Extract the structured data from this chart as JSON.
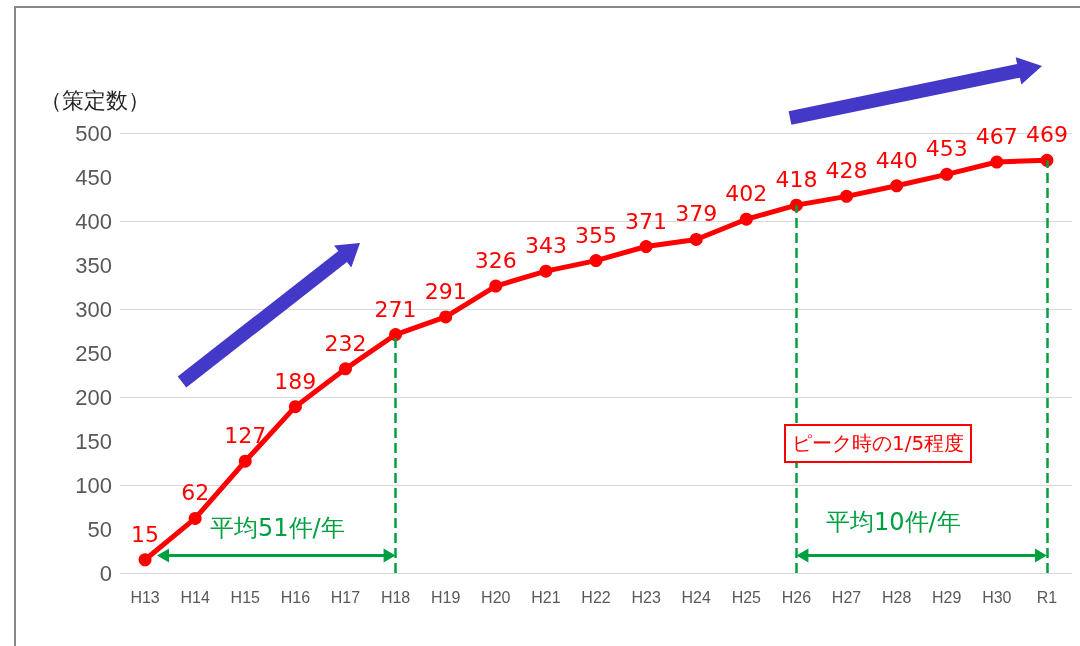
{
  "chart_data": {
    "type": "line",
    "ylabel": "（策定数）",
    "categories": [
      "H13",
      "H14",
      "H15",
      "H16",
      "H17",
      "H18",
      "H19",
      "H20",
      "H21",
      "H22",
      "H23",
      "H24",
      "H25",
      "H26",
      "H27",
      "H28",
      "H29",
      "H30",
      "R1"
    ],
    "series": [
      {
        "color": "#ff0000",
        "values": [
          15,
          62,
          127,
          189,
          232,
          271,
          291,
          326,
          343,
          355,
          371,
          379,
          402,
          418,
          428,
          440,
          453,
          467,
          469
        ]
      }
    ],
    "ylim": [
      0,
      500
    ],
    "yticks": [
      0,
      50,
      100,
      150,
      200,
      250,
      300,
      350,
      400,
      450,
      500
    ],
    "grid": "y",
    "marker": "circle",
    "line_style": "solid",
    "data_labels": true,
    "ref_lines": [
      {
        "axis": "x",
        "value": "H18",
        "color": "#00a040",
        "line_style": "dashed"
      },
      {
        "axis": "x",
        "value": "H26",
        "color": "#00a040",
        "line_style": "dashed"
      },
      {
        "axis": "x",
        "value": "R1",
        "color": "#00a040",
        "line_style": "dashed"
      }
    ],
    "annotations": [
      "平均51件/年",
      "平均10件/年",
      "ピーク時の1/5程度"
    ]
  }
}
